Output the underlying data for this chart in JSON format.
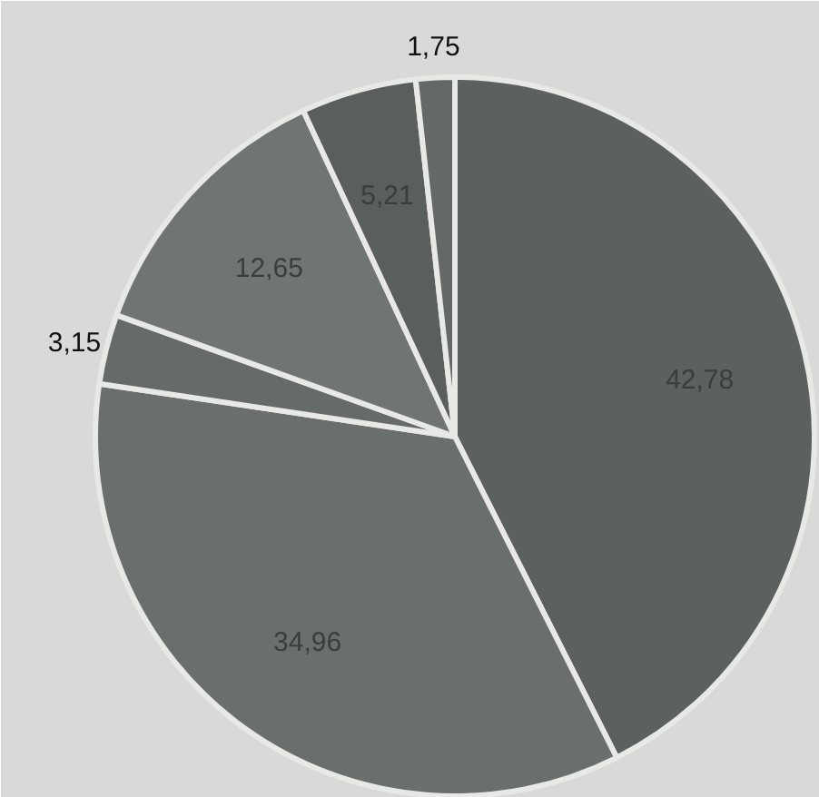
{
  "chart_data": {
    "type": "pie",
    "categories": [
      null,
      null,
      null,
      null,
      null,
      null
    ],
    "values": [
      42.78,
      34.96,
      3.15,
      12.65,
      5.21,
      1.75
    ],
    "value_labels": [
      "42,78",
      "34,96",
      "3,15",
      "12,65",
      "5,21",
      "1,75"
    ],
    "colors": [
      "#5c6160",
      "#6a6e6c",
      "#666a69",
      "#707472",
      "#5a5e5d",
      "#646867"
    ]
  }
}
